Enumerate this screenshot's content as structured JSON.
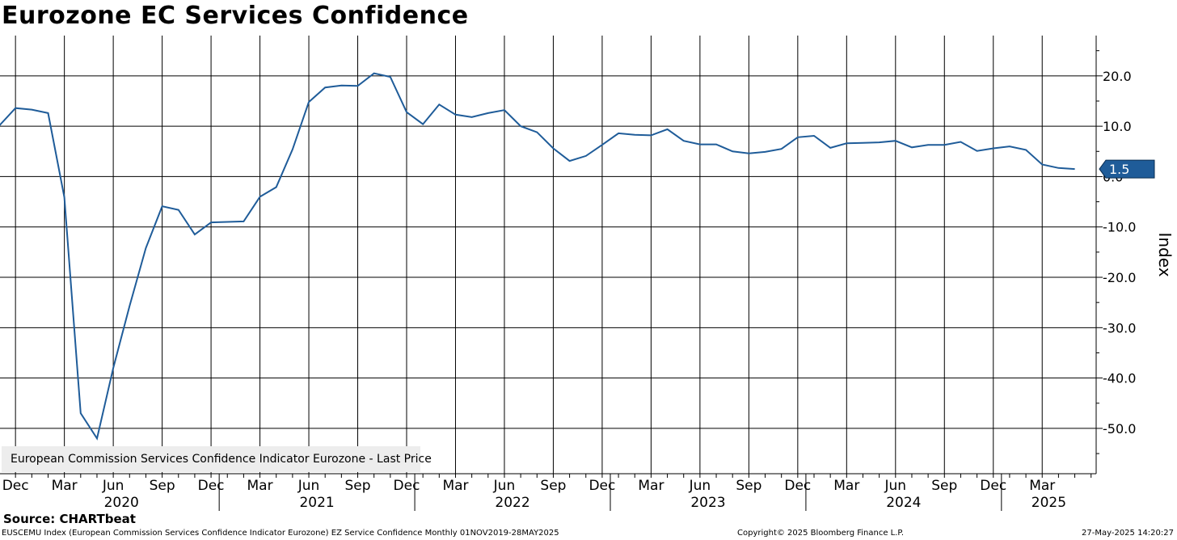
{
  "title": "Eurozone EC Services Confidence",
  "source": "Source: CHARTbeat",
  "footer": {
    "left": "EUSCEMU Index (European Commission Services Confidence Indicator Eurozone) EZ Service Confidence  Monthly 01NOV2019-28MAY2025",
    "center": "Copyright© 2025 Bloomberg Finance L.P.",
    "right": "27-May-2025 14:20:27"
  },
  "colors": {
    "line": "#1f5c99",
    "grid": "#000000",
    "legend_bg": "#ededed"
  },
  "chart_data": {
    "type": "line",
    "ylabel": "Index",
    "ylim": [
      -59,
      28
    ],
    "y_ticks": [
      20,
      10,
      0,
      -10,
      -20,
      -30,
      -40,
      -50
    ],
    "y_tick_labels": [
      "20.0",
      "10.0",
      "0.0",
      "-10.0",
      "-20.0",
      "-30.0",
      "-40.0",
      "-50.0"
    ],
    "x_start": "2019-11",
    "month_ticks": [
      {
        "label": "Dec",
        "date": "2019-12"
      },
      {
        "label": "Mar",
        "date": "2020-03"
      },
      {
        "label": "Jun",
        "date": "2020-06"
      },
      {
        "label": "Sep",
        "date": "2020-09"
      },
      {
        "label": "Dec",
        "date": "2020-12"
      },
      {
        "label": "Mar",
        "date": "2021-03"
      },
      {
        "label": "Jun",
        "date": "2021-06"
      },
      {
        "label": "Sep",
        "date": "2021-09"
      },
      {
        "label": "Dec",
        "date": "2021-12"
      },
      {
        "label": "Mar",
        "date": "2022-03"
      },
      {
        "label": "Jun",
        "date": "2022-06"
      },
      {
        "label": "Sep",
        "date": "2022-09"
      },
      {
        "label": "Dec",
        "date": "2022-12"
      },
      {
        "label": "Mar",
        "date": "2023-03"
      },
      {
        "label": "Jun",
        "date": "2023-06"
      },
      {
        "label": "Sep",
        "date": "2023-09"
      },
      {
        "label": "Dec",
        "date": "2023-12"
      },
      {
        "label": "Mar",
        "date": "2024-03"
      },
      {
        "label": "Jun",
        "date": "2024-06"
      },
      {
        "label": "Sep",
        "date": "2024-09"
      },
      {
        "label": "Dec",
        "date": "2024-12"
      },
      {
        "label": "Mar",
        "date": "2025-03"
      }
    ],
    "year_labels": [
      {
        "label": "2020",
        "date": "2020-01"
      },
      {
        "label": "2021",
        "date": "2021-01"
      },
      {
        "label": "2022",
        "date": "2022-01"
      },
      {
        "label": "2023",
        "date": "2023-01"
      },
      {
        "label": "2024",
        "date": "2024-01"
      },
      {
        "label": "2025",
        "date": "2025-01"
      }
    ],
    "series": [
      {
        "name": "European Commission Services Confidence Indicator Eurozone - Last Price",
        "last_value_label": "1.5",
        "x": [
          "2019-11",
          "2019-12",
          "2020-01",
          "2020-02",
          "2020-03",
          "2020-04",
          "2020-05",
          "2020-06",
          "2020-07",
          "2020-08",
          "2020-09",
          "2020-10",
          "2020-11",
          "2020-12",
          "2021-01",
          "2021-02",
          "2021-03",
          "2021-04",
          "2021-05",
          "2021-06",
          "2021-07",
          "2021-08",
          "2021-09",
          "2021-10",
          "2021-11",
          "2021-12",
          "2022-01",
          "2022-02",
          "2022-03",
          "2022-04",
          "2022-05",
          "2022-06",
          "2022-07",
          "2022-08",
          "2022-09",
          "2022-10",
          "2022-11",
          "2022-12",
          "2023-01",
          "2023-02",
          "2023-03",
          "2023-04",
          "2023-05",
          "2023-06",
          "2023-07",
          "2023-08",
          "2023-09",
          "2023-10",
          "2023-11",
          "2023-12",
          "2024-01",
          "2024-02",
          "2024-03",
          "2024-04",
          "2024-05",
          "2024-06",
          "2024-07",
          "2024-08",
          "2024-09",
          "2024-10",
          "2024-11",
          "2024-12",
          "2025-01",
          "2025-02",
          "2025-03",
          "2025-04",
          "2025-05"
        ],
        "values": [
          10.1,
          13.6,
          13.3,
          12.6,
          -4.1,
          -47.0,
          -52.0,
          -38.0,
          -25.7,
          -14.2,
          -5.9,
          -6.6,
          -11.5,
          -9.1,
          -9.0,
          -8.9,
          -4.0,
          -2.1,
          5.4,
          14.8,
          17.7,
          18.1,
          18.0,
          20.5,
          19.8,
          12.8,
          10.4,
          14.3,
          12.3,
          11.8,
          12.6,
          13.2,
          10.0,
          8.8,
          5.6,
          3.1,
          4.1,
          6.3,
          8.6,
          8.3,
          8.2,
          9.4,
          7.1,
          6.4,
          6.4,
          5.0,
          4.6,
          4.9,
          5.5,
          7.8,
          8.1,
          5.7,
          6.6,
          6.7,
          6.8,
          7.1,
          5.8,
          6.3,
          6.3,
          6.9,
          5.1,
          5.6,
          6.0,
          5.3,
          2.4,
          1.7,
          1.5
        ]
      }
    ]
  }
}
